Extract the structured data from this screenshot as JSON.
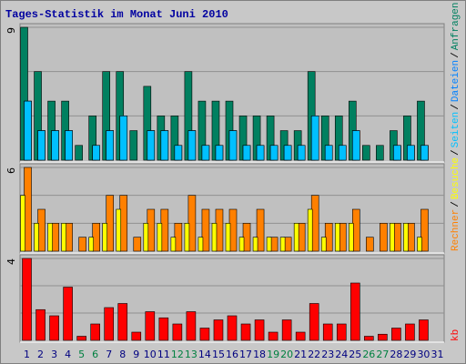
{
  "chart_data": {
    "type": "bar",
    "title": "Tages-Statistik im Monat Juni 2010",
    "categories": [
      "1",
      "2",
      "3",
      "4",
      "5",
      "6",
      "7",
      "8",
      "9",
      "10",
      "11",
      "12",
      "13",
      "14",
      "15",
      "16",
      "17",
      "18",
      "19",
      "20",
      "21",
      "22",
      "23",
      "24",
      "25",
      "26",
      "27",
      "28",
      "29",
      "30",
      "31"
    ],
    "category_color": "#000080",
    "highlight_categories": [
      4,
      5,
      11,
      12,
      18,
      19,
      25,
      26
    ],
    "highlight_color": "#008040",
    "separator": "/",
    "panels": [
      {
        "ylim": [
          0,
          9
        ],
        "yticks": [
          9
        ],
        "series": [
          {
            "name": "Anfragen",
            "color": "#008060",
            "values": [
              9,
              6,
              4,
              4,
              1,
              3,
              6,
              6,
              2,
              5,
              3,
              3,
              6,
              4,
              4,
              4,
              3,
              3,
              3,
              2,
              2,
              6,
              3,
              3,
              4,
              1,
              1,
              2,
              3,
              4,
              0
            ]
          },
          {
            "name": "Dateien",
            "color": "#0080ff",
            "values": [
              4,
              2,
              2,
              2,
              0,
              1,
              2,
              3,
              0,
              2,
              2,
              1,
              2,
              1,
              1,
              2,
              1,
              1,
              1,
              1,
              1,
              3,
              1,
              1,
              2,
              0,
              0,
              1,
              1,
              1,
              0
            ]
          },
          {
            "name": "Seiten",
            "color": "#00c0ff",
            "values": [
              4,
              2,
              2,
              2,
              0,
              1,
              2,
              3,
              0,
              2,
              2,
              1,
              2,
              1,
              1,
              2,
              1,
              1,
              1,
              1,
              1,
              3,
              1,
              1,
              2,
              0,
              0,
              1,
              1,
              1,
              0
            ]
          }
        ]
      },
      {
        "ylim": [
          0,
          6
        ],
        "yticks": [
          6
        ],
        "series": [
          {
            "name": "Rechner",
            "color": "#ff8000",
            "values": [
              6,
              3,
              2,
              2,
              1,
              2,
              4,
              4,
              1,
              3,
              3,
              2,
              4,
              3,
              3,
              3,
              2,
              3,
              1,
              1,
              2,
              4,
              2,
              2,
              3,
              1,
              2,
              2,
              2,
              3,
              0
            ]
          },
          {
            "name": "Besuche",
            "color": "#ffff00",
            "values": [
              4,
              2,
              2,
              2,
              0,
              1,
              2,
              3,
              0,
              2,
              2,
              1,
              2,
              1,
              2,
              2,
              1,
              1,
              1,
              1,
              2,
              3,
              1,
              2,
              2,
              0,
              0,
              2,
              2,
              1,
              0
            ]
          }
        ]
      },
      {
        "ylim": [
          0,
          4
        ],
        "yticks": [
          4
        ],
        "series": [
          {
            "name": "kb",
            "color": "#ff0000",
            "values": [
              4,
              1.5,
              1.2,
              2.6,
              0.2,
              0.8,
              1.6,
              1.8,
              0.4,
              1.4,
              1.1,
              0.8,
              1.4,
              0.6,
              1.0,
              1.2,
              0.8,
              1.0,
              0.4,
              1.0,
              0.4,
              1.8,
              0.8,
              0.8,
              2.8,
              0.2,
              0.3,
              0.6,
              0.8,
              1.0,
              0
            ]
          }
        ]
      }
    ]
  }
}
